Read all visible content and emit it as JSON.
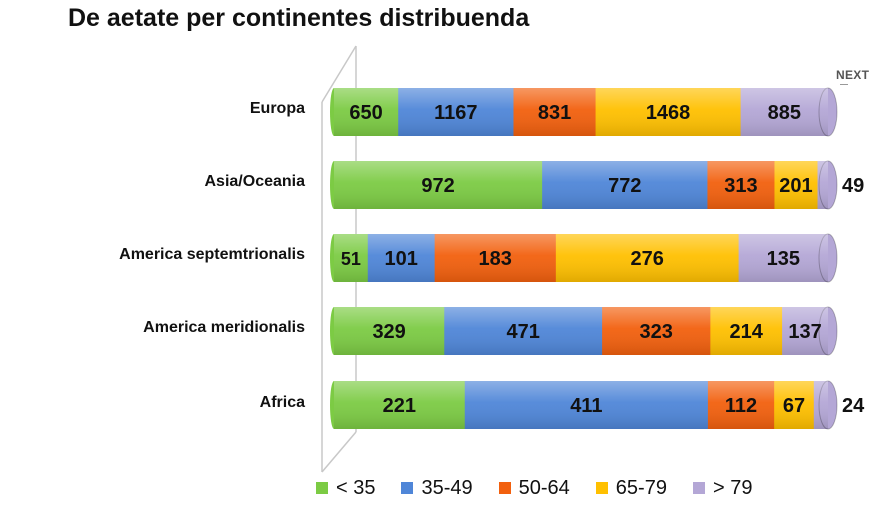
{
  "title": "De aetate per continentes distribuenda",
  "next_label": "NEXT",
  "chart_data": {
    "type": "bar",
    "orientation": "horizontal",
    "stacked": true,
    "normalized": true,
    "categories": [
      "Europa",
      "Asia/Oceania",
      "America septemtrionalis",
      "America meridionalis",
      "Africa"
    ],
    "series": [
      {
        "name": "< 35",
        "color": "#7CCB44",
        "values": [
          650,
          972,
          51,
          329,
          221
        ]
      },
      {
        "name": "35-49",
        "color": "#4F86D8",
        "values": [
          1167,
          772,
          101,
          471,
          411
        ]
      },
      {
        "name": "50-64",
        "color": "#F2600E",
        "values": [
          831,
          313,
          183,
          323,
          112
        ]
      },
      {
        "name": "65-79",
        "color": "#FFC000",
        "values": [
          1468,
          201,
          276,
          214,
          67
        ]
      },
      {
        "name": "> 79",
        "color": "#B4A7D6",
        "values": [
          885,
          49,
          135,
          137,
          24
        ]
      }
    ],
    "legend_position": "bottom",
    "grid": false
  }
}
